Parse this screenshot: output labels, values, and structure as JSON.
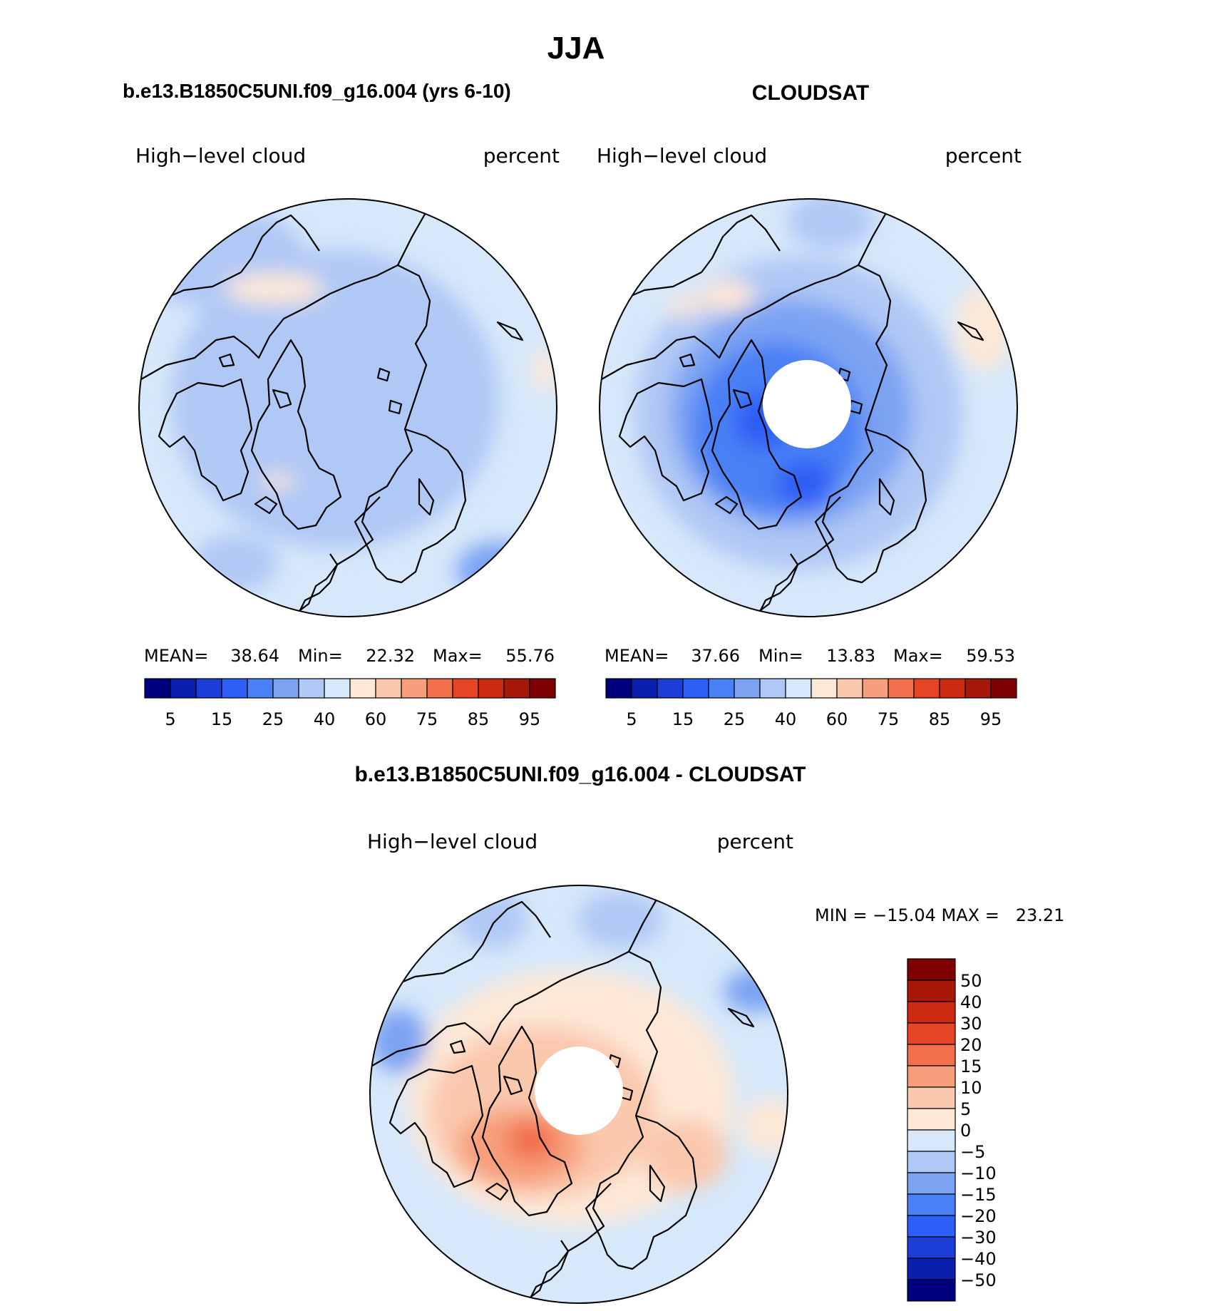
{
  "title": "JJA",
  "palette": {
    "abs": [
      "#00007f",
      "#0a1fae",
      "#1c3ed7",
      "#2d5ef5",
      "#4a80f5",
      "#7ba3f2",
      "#b0c8f5",
      "#d6e8fa",
      "#fde8d7",
      "#fac8ad",
      "#f79f7c",
      "#f2704e",
      "#e64525",
      "#cc2a10",
      "#a81808",
      "#7f0000"
    ],
    "diff": [
      "#00007f",
      "#0a1fae",
      "#1c3ed7",
      "#2d5ef5",
      "#4a80f5",
      "#7ba3f2",
      "#b0c8f5",
      "#d6e8fa",
      "#fde8d7",
      "#fac8ad",
      "#f79f7c",
      "#f2704e",
      "#e64525",
      "#cc2a10",
      "#a81808",
      "#7f0000"
    ]
  },
  "chart_data": [
    {
      "type": "map-contour",
      "name": "model",
      "title": "b.e13.B1850C5UNI.f09_g16.004 (yrs 6-10)",
      "left_label": "High−level cloud",
      "right_label": "percent",
      "stats": {
        "mean_label": "MEAN=",
        "mean": "38.64",
        "min_label": "Min=",
        "min": "22.32",
        "max_label": "Max=",
        "max": "55.76"
      },
      "colorbar_ticks": [
        "5",
        "15",
        "25",
        "40",
        "60",
        "75",
        "85",
        "95"
      ]
    },
    {
      "type": "map-contour",
      "name": "obs",
      "title": "CLOUDSAT",
      "left_label": "High−level cloud",
      "right_label": "percent",
      "stats": {
        "mean_label": "MEAN=",
        "mean": "37.66",
        "min_label": "Min=",
        "min": "13.83",
        "max_label": "Max=",
        "max": "59.53"
      },
      "colorbar_ticks": [
        "5",
        "15",
        "25",
        "40",
        "60",
        "75",
        "85",
        "95"
      ]
    },
    {
      "type": "map-contour",
      "name": "difference",
      "title": "b.e13.B1850C5UNI.f09_g16.004 - CLOUDSAT",
      "left_label": "High−level cloud",
      "right_label": "percent",
      "minmax_text": "MIN = −15.04 MAX =   23.21",
      "colorbar_ticks": [
        "50",
        "40",
        "30",
        "20",
        "15",
        "10",
        "5",
        "0",
        "−5",
        "−10",
        "−15",
        "−20",
        "−30",
        "−40",
        "−50"
      ]
    }
  ]
}
